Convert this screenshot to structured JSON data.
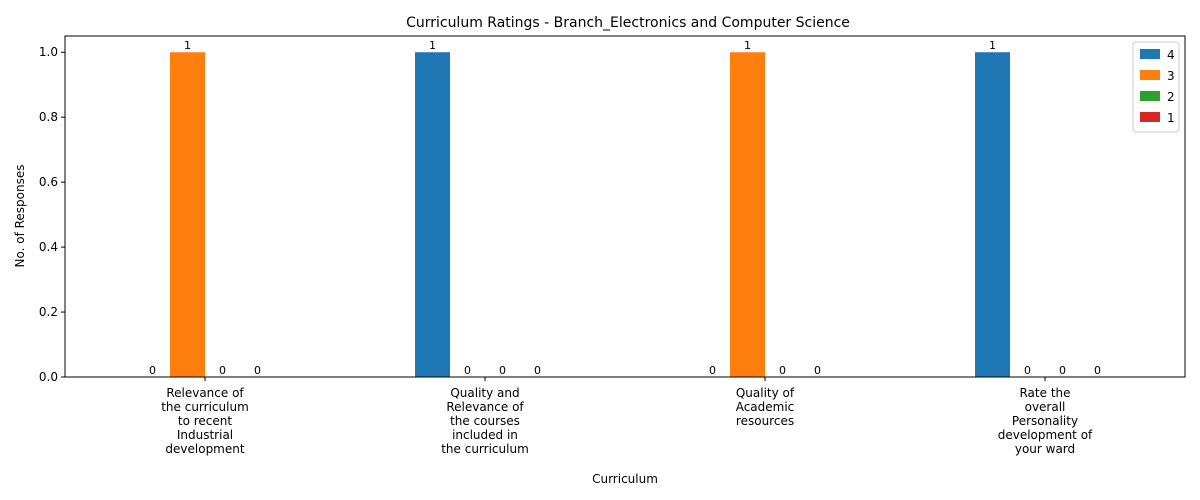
{
  "chart_data": {
    "type": "bar",
    "title": "Curriculum Ratings - Branch_Electronics and Computer Science",
    "xlabel": "Curriculum",
    "ylabel": "No. of Responses",
    "ylim": [
      0,
      1.05
    ],
    "yticks": [
      "0.0",
      "0.2",
      "0.4",
      "0.6",
      "0.8",
      "1.0"
    ],
    "categories": [
      [
        "Relevance of",
        "the curriculum",
        "to recent",
        "Industrial",
        "development"
      ],
      [
        "Quality and",
        "Relevance of",
        "the courses",
        "included in",
        "the curriculum"
      ],
      [
        "Quality of",
        "Academic",
        "resources"
      ],
      [
        "Rate the",
        "overall",
        "Personality",
        "development of",
        "your ward"
      ]
    ],
    "series": [
      {
        "name": "4",
        "color": "#1f77b4",
        "values": [
          0,
          1,
          0,
          1
        ]
      },
      {
        "name": "3",
        "color": "#ff7f0e",
        "values": [
          1,
          0,
          1,
          0
        ]
      },
      {
        "name": "2",
        "color": "#2ca02c",
        "values": [
          0,
          0,
          0,
          0
        ]
      },
      {
        "name": "1",
        "color": "#d62728",
        "values": [
          0,
          0,
          0,
          0
        ]
      }
    ],
    "legend_position": "top-right",
    "grid": false,
    "data_labels": true
  }
}
